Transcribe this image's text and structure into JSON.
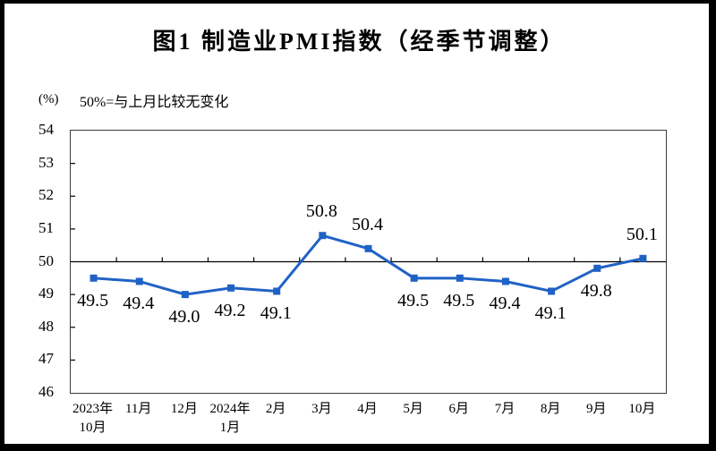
{
  "title": "图1 制造业PMI指数（经季节调整）",
  "unit_label": "(%)",
  "note": "50%=与上月比较无变化",
  "chart_data": {
    "type": "line",
    "title": "图1 制造业PMI指数（经季节调整）",
    "ylabel": "(%)",
    "annotation": "50%=与上月比较无变化",
    "series_color": "#1F62C5",
    "reference_line": 50,
    "ylim": [
      46,
      54
    ],
    "ytick_step": 1,
    "legend": "none",
    "grid": "off",
    "categories": [
      "2023年\n10月",
      "11月",
      "12月",
      "2024年\n1月",
      "2月",
      "3月",
      "4月",
      "5月",
      "6月",
      "7月",
      "8月",
      "9月",
      "10月"
    ],
    "values": [
      49.5,
      49.4,
      49.0,
      49.2,
      49.1,
      50.8,
      50.4,
      49.5,
      49.5,
      49.4,
      49.1,
      49.8,
      50.1
    ],
    "point_labels": [
      "49.5",
      "49.4",
      "49.0",
      "49.2",
      "49.1",
      "50.8",
      "50.4",
      "49.5",
      "49.5",
      "49.4",
      "49.1",
      "49.8",
      "50.1"
    ]
  }
}
